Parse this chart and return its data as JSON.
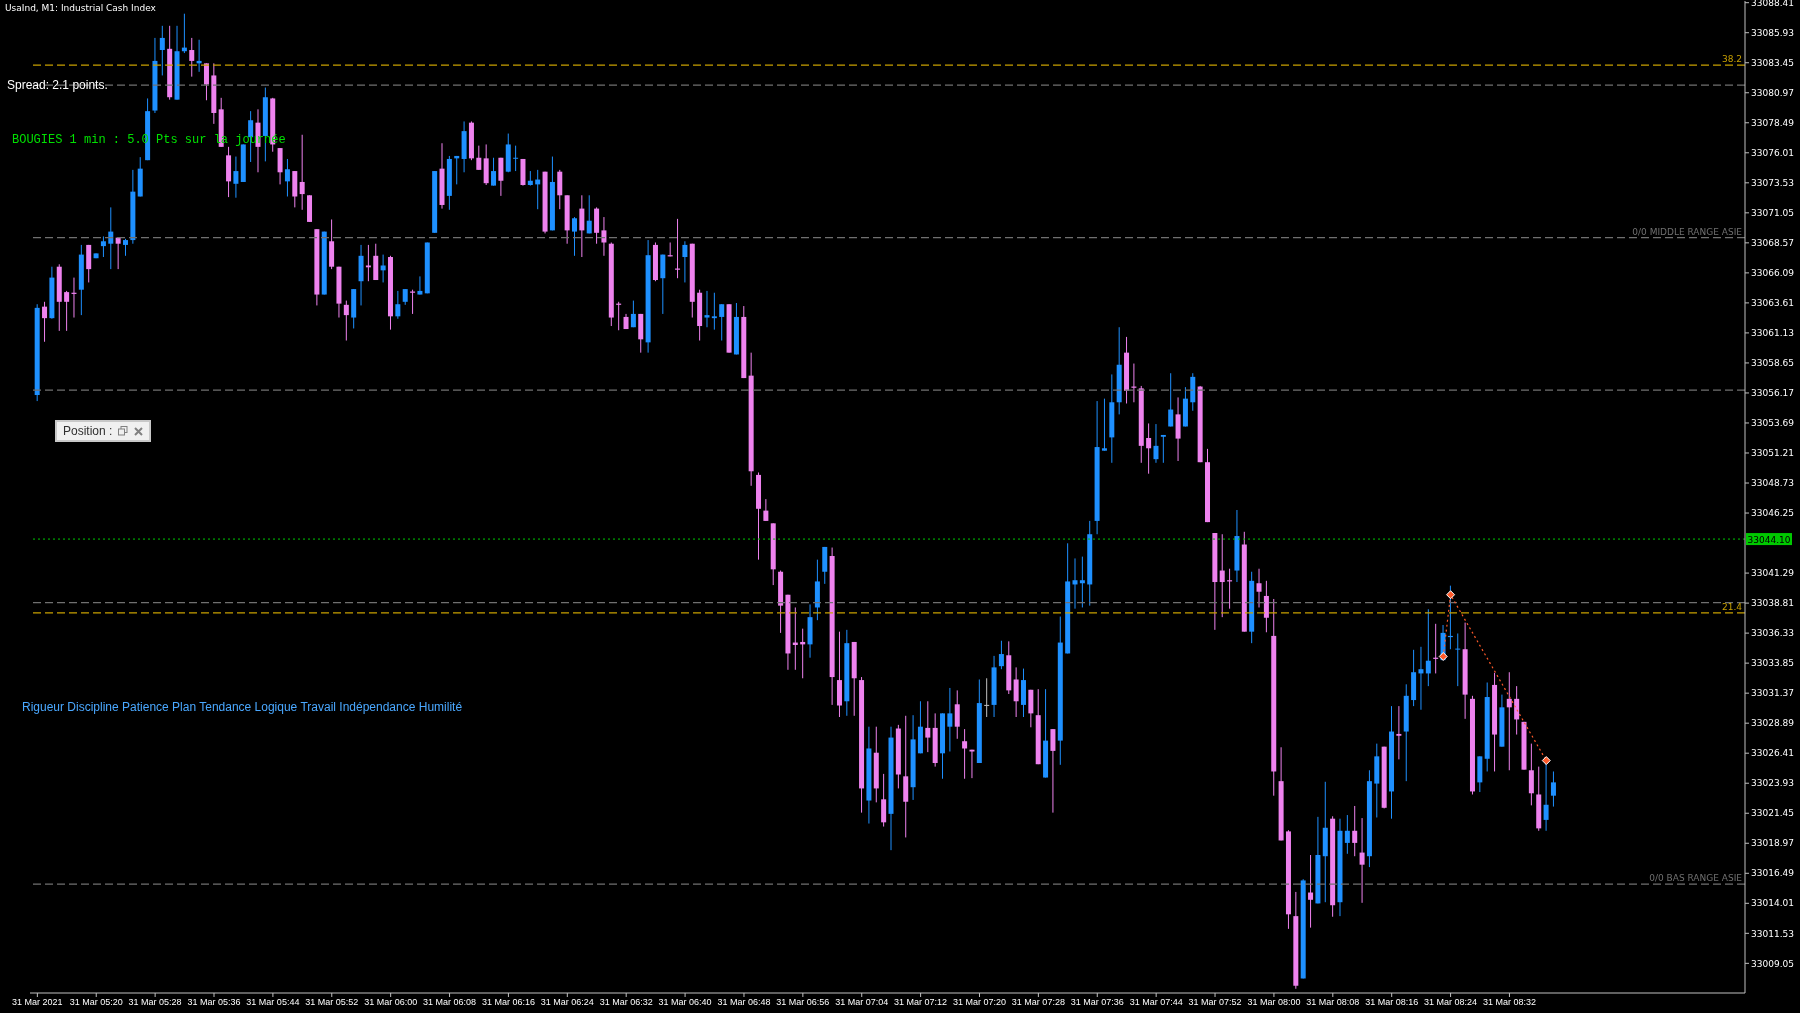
{
  "chart_data": {
    "type": "candlestick",
    "title": "UsaInd, M1: Industrial Cash Index",
    "annotations": [
      "Spread: 2.1 points.",
      "BOUGIES 1 min : 5.0 Pts sur la journée",
      "Position :",
      "Rigueur Discipline Patience Plan Tendance Logique Travail Indépendance Humilité",
      {
        "text": "38.2",
        "y": 33083.25
      },
      {
        "text": "21.4",
        "y": 33038.0
      }
    ],
    "x": [
      "2021-03-31T05:12",
      "2021-03-31T05:13",
      "2021-03-31T05:14",
      "2021-03-31T05:15",
      "2021-03-31T05:16",
      "2021-03-31T05:17",
      "2021-03-31T05:18",
      "2021-03-31T05:19",
      "2021-03-31T05:20",
      "2021-03-31T05:21",
      "2021-03-31T05:22",
      "2021-03-31T05:23",
      "2021-03-31T05:24",
      "2021-03-31T05:25",
      "2021-03-31T05:26",
      "2021-03-31T05:27",
      "2021-03-31T05:28",
      "2021-03-31T05:29",
      "2021-03-31T05:30",
      "2021-03-31T05:31",
      "2021-03-31T05:32",
      "2021-03-31T05:33",
      "2021-03-31T05:34",
      "2021-03-31T05:35",
      "2021-03-31T05:36",
      "2021-03-31T05:37",
      "2021-03-31T05:38",
      "2021-03-31T05:39",
      "2021-03-31T05:40",
      "2021-03-31T05:41",
      "2021-03-31T05:42",
      "2021-03-31T05:43",
      "2021-03-31T05:44",
      "2021-03-31T05:45",
      "2021-03-31T05:46",
      "2021-03-31T05:47",
      "2021-03-31T05:48",
      "2021-03-31T05:49",
      "2021-03-31T05:50",
      "2021-03-31T05:51",
      "2021-03-31T05:52",
      "2021-03-31T05:53",
      "2021-03-31T05:54",
      "2021-03-31T05:55",
      "2021-03-31T05:56",
      "2021-03-31T05:57",
      "2021-03-31T05:58",
      "2021-03-31T05:59",
      "2021-03-31T06:00",
      "2021-03-31T06:01",
      "2021-03-31T06:02",
      "2021-03-31T06:03",
      "2021-03-31T06:04",
      "2021-03-31T06:05",
      "2021-03-31T06:06",
      "2021-03-31T06:07",
      "2021-03-31T06:08",
      "2021-03-31T06:09",
      "2021-03-31T06:10",
      "2021-03-31T06:11",
      "2021-03-31T06:12",
      "2021-03-31T06:13",
      "2021-03-31T06:14",
      "2021-03-31T06:15",
      "2021-03-31T06:16",
      "2021-03-31T06:17",
      "2021-03-31T06:18",
      "2021-03-31T06:19",
      "2021-03-31T06:20",
      "2021-03-31T06:21",
      "2021-03-31T06:22",
      "2021-03-31T06:23",
      "2021-03-31T06:24",
      "2021-03-31T06:25",
      "2021-03-31T06:26",
      "2021-03-31T06:27",
      "2021-03-31T06:28",
      "2021-03-31T06:29",
      "2021-03-31T06:30",
      "2021-03-31T06:31",
      "2021-03-31T06:32",
      "2021-03-31T06:33",
      "2021-03-31T06:34",
      "2021-03-31T06:35",
      "2021-03-31T06:36",
      "2021-03-31T06:37",
      "2021-03-31T06:38",
      "2021-03-31T06:39",
      "2021-03-31T06:40",
      "2021-03-31T06:41",
      "2021-03-31T06:42",
      "2021-03-31T06:43",
      "2021-03-31T06:44",
      "2021-03-31T06:45",
      "2021-03-31T06:46",
      "2021-03-31T06:47",
      "2021-03-31T06:48",
      "2021-03-31T06:49",
      "2021-03-31T06:50",
      "2021-03-31T06:51",
      "2021-03-31T06:52",
      "2021-03-31T06:53",
      "2021-03-31T06:54",
      "2021-03-31T06:55",
      "2021-03-31T06:56",
      "2021-03-31T06:57",
      "2021-03-31T06:58",
      "2021-03-31T06:59",
      "2021-03-31T07:00",
      "2021-03-31T07:01",
      "2021-03-31T07:02",
      "2021-03-31T07:03",
      "2021-03-31T07:04",
      "2021-03-31T07:05",
      "2021-03-31T07:06",
      "2021-03-31T07:07",
      "2021-03-31T07:08",
      "2021-03-31T07:09",
      "2021-03-31T07:10",
      "2021-03-31T07:11",
      "2021-03-31T07:12",
      "2021-03-31T07:13",
      "2021-03-31T07:14",
      "2021-03-31T07:15",
      "2021-03-31T07:16",
      "2021-03-31T07:17",
      "2021-03-31T07:18",
      "2021-03-31T07:19",
      "2021-03-31T07:20",
      "2021-03-31T07:21",
      "2021-03-31T07:22",
      "2021-03-31T07:23",
      "2021-03-31T07:24",
      "2021-03-31T07:25",
      "2021-03-31T07:26",
      "2021-03-31T07:27",
      "2021-03-31T07:28",
      "2021-03-31T07:29",
      "2021-03-31T07:30",
      "2021-03-31T07:31",
      "2021-03-31T07:32",
      "2021-03-31T07:33",
      "2021-03-31T07:34",
      "2021-03-31T07:35",
      "2021-03-31T07:36",
      "2021-03-31T07:37",
      "2021-03-31T07:38",
      "2021-03-31T07:39",
      "2021-03-31T07:40",
      "2021-03-31T07:41",
      "2021-03-31T07:42",
      "2021-03-31T07:43",
      "2021-03-31T07:44",
      "2021-03-31T07:45",
      "2021-03-31T07:46",
      "2021-03-31T07:47",
      "2021-03-31T07:48",
      "2021-03-31T07:49",
      "2021-03-31T07:50",
      "2021-03-31T07:51",
      "2021-03-31T07:52",
      "2021-03-31T07:53",
      "2021-03-31T07:54",
      "2021-03-31T07:55",
      "2021-03-31T07:56",
      "2021-03-31T07:57",
      "2021-03-31T07:58",
      "2021-03-31T07:59",
      "2021-03-31T08:00",
      "2021-03-31T08:01",
      "2021-03-31T08:02",
      "2021-03-31T08:03",
      "2021-03-31T08:04",
      "2021-03-31T08:05",
      "2021-03-31T08:06",
      "2021-03-31T08:07",
      "2021-03-31T08:08",
      "2021-03-31T08:09",
      "2021-03-31T08:10",
      "2021-03-31T08:11",
      "2021-03-31T08:12",
      "2021-03-31T08:13",
      "2021-03-31T08:14",
      "2021-03-31T08:15",
      "2021-03-31T08:16",
      "2021-03-31T08:17",
      "2021-03-31T08:18",
      "2021-03-31T08:19",
      "2021-03-31T08:20",
      "2021-03-31T08:21",
      "2021-03-31T08:22",
      "2021-03-31T08:23",
      "2021-03-31T08:24",
      "2021-03-31T08:25",
      "2021-03-31T08:26",
      "2021-03-31T08:27",
      "2021-03-31T08:28",
      "2021-03-31T08:29",
      "2021-03-31T08:30",
      "2021-03-31T08:31",
      "2021-03-31T08:32",
      "2021-03-31T08:33",
      "2021-03-31T08:34",
      "2021-03-31T08:35",
      "2021-03-31T08:36",
      "2021-03-31T08:37",
      "2021-03-31T08:38"
    ],
    "ohlc": [
      [
        33056,
        33063.5,
        33055.5,
        33063.2
      ],
      [
        33063.3,
        33063.7,
        33060.4,
        33062.35
      ],
      [
        33062.35,
        33066.6,
        33062.3,
        33065.7
      ],
      [
        33066.6,
        33066.8,
        33061.3,
        33063.7
      ],
      [
        33064.5,
        33064.6,
        33061.3,
        33063.7
      ],
      [
        33064.45,
        33065.7,
        33062.4,
        33064.35
      ],
      [
        33064.7,
        33068.4,
        33062.6,
        33067.6
      ],
      [
        33068.4,
        33068.4,
        33065.3,
        33066.4
      ],
      [
        33067.3,
        33067.7,
        33067.3,
        33067.7
      ],
      [
        33068.3,
        33069.1,
        33067.4,
        33068.7
      ],
      [
        33068.5,
        33071.5,
        33066.4,
        33069.5
      ],
      [
        33069,
        33069,
        33066.4,
        33068.5
      ],
      [
        33068.4,
        33068.9,
        33067.5,
        33068.8
      ],
      [
        33068.8,
        33074.6,
        33068.5,
        33072.8
      ],
      [
        33072.4,
        33075.65,
        33072.4,
        33074.7
      ],
      [
        33075.4,
        33080.5,
        33075.4,
        33079.45
      ],
      [
        33079.5,
        33085.5,
        33079.3,
        33083.6
      ],
      [
        33084.5,
        33086.5,
        33082.4,
        33085.5
      ],
      [
        33084.6,
        33086.5,
        33080.4,
        33080.6
      ],
      [
        33080.4,
        33086.5,
        33080.4,
        33084.4
      ],
      [
        33084.4,
        33087.5,
        33084.25,
        33084.7
      ],
      [
        33084.5,
        33085.5,
        33082.3,
        33083.6
      ],
      [
        33083.4,
        33085.35,
        33082.7,
        33083.6
      ],
      [
        33083.4,
        33083.4,
        33080.35,
        33081.65
      ],
      [
        33082.4,
        33083.4,
        33078.4,
        33079.3
      ],
      [
        33079.6,
        33080.55,
        33076.5,
        33076.5
      ],
      [
        33075.8,
        33076.5,
        33072.35,
        33073.65
      ],
      [
        33073.45,
        33075.7,
        33072.3,
        33074.5
      ],
      [
        33073.6,
        33076.7,
        33073.6,
        33076.7
      ],
      [
        33077.3,
        33079.45,
        33075.25,
        33078.7
      ],
      [
        33078.5,
        33079.6,
        33074.4,
        33076.5
      ],
      [
        33077.4,
        33081.4,
        33075.3,
        33080.6
      ],
      [
        33080.5,
        33080.55,
        33076.1,
        33076.7
      ],
      [
        33076.4,
        33076.4,
        33073.4,
        33074.4
      ],
      [
        33073.65,
        33075.5,
        33072.4,
        33074.65
      ],
      [
        33074.5,
        33074.5,
        33071.5,
        33072.4
      ],
      [
        33073.6,
        33077.5,
        33071.3,
        33072.6
      ],
      [
        33072.5,
        33072.5,
        33070.3,
        33070.3
      ],
      [
        33069.7,
        33069.7,
        33063.4,
        33064.3
      ],
      [
        33064.3,
        33069.5,
        33064.3,
        33069.5
      ],
      [
        33068.7,
        33070.5,
        33066.4,
        33066.6
      ],
      [
        33066.6,
        33066.6,
        33062.4,
        33063.55
      ],
      [
        33063.45,
        33063.8,
        33060.5,
        33062.6
      ],
      [
        33062.4,
        33064.75,
        33061.5,
        33064.75
      ],
      [
        33065.4,
        33068.4,
        33063.4,
        33067.5
      ],
      [
        33066.7,
        33068.4,
        33065.4,
        33066.55
      ],
      [
        33067.5,
        33068.5,
        33065.5,
        33065.5
      ],
      [
        33066.3,
        33067.6,
        33065.3,
        33066.7
      ],
      [
        33067.4,
        33067.5,
        33061.4,
        33062.5
      ],
      [
        33062.5,
        33064.6,
        33062.3,
        33063.5
      ],
      [
        33063.7,
        33064.75,
        33063.45,
        33064.75
      ],
      [
        33064.55,
        33064.7,
        33062.7,
        33064.45
      ],
      [
        33064.3,
        33065.8,
        33064.3,
        33064.6
      ],
      [
        33064.4,
        33068.6,
        33064.4,
        33068.6
      ],
      [
        33069.4,
        33074.5,
        33069.4,
        33074.5
      ],
      [
        33074.7,
        33076.8,
        33071.4,
        33071.7
      ],
      [
        33072.45,
        33075.75,
        33071.3,
        33075.5
      ],
      [
        33075.55,
        33075.75,
        33073.4,
        33075.75
      ],
      [
        33075.5,
        33078.6,
        33074.4,
        33077.8
      ],
      [
        33078.5,
        33078.6,
        33075.4,
        33075.55
      ],
      [
        33075.6,
        33076.6,
        33074.6,
        33074.6
      ],
      [
        33075.55,
        33076.7,
        33073.35,
        33073.5
      ],
      [
        33073.3,
        33075.6,
        33073.3,
        33074.5
      ],
      [
        33075.6,
        33075.6,
        33072.45,
        33073.7
      ],
      [
        33074.45,
        33077.6,
        33074.4,
        33076.7
      ],
      [
        33075.55,
        33076.6,
        33074.5,
        33075.6
      ],
      [
        33075.5,
        33075.5,
        33073.3,
        33073.35
      ],
      [
        33073.35,
        33074.5,
        33073.3,
        33073.7
      ],
      [
        33073.4,
        33074.6,
        33071.35,
        33073.8
      ],
      [
        33074.45,
        33074.45,
        33069.35,
        33069.5
      ],
      [
        33069.6,
        33075.7,
        33069.6,
        33073.6
      ],
      [
        33074.45,
        33074.6,
        33071.35,
        33072.5
      ],
      [
        33072.5,
        33072.5,
        33068.5,
        33069.6
      ],
      [
        33069.5,
        33070.7,
        33067.5,
        33070.6
      ],
      [
        33071.4,
        33072.5,
        33067.4,
        33069.6
      ],
      [
        33069.35,
        33072.5,
        33069.35,
        33070.4
      ],
      [
        33071.4,
        33071.5,
        33068.5,
        33069.4
      ],
      [
        33069.6,
        33070.7,
        33067.5,
        33068.6
      ],
      [
        33068.5,
        33068.6,
        33061.7,
        33062.4
      ],
      [
        33063.55,
        33063.7,
        33061.35,
        33063.45
      ],
      [
        33062.45,
        33062.7,
        33061.45,
        33061.45
      ],
      [
        33061.6,
        33063.8,
        33061.6,
        33062.7
      ],
      [
        33062.7,
        33062.7,
        33059.5,
        33060.6
      ],
      [
        33060.35,
        33068.8,
        33059.5,
        33067.55
      ],
      [
        33068.4,
        33068.6,
        33065.4,
        33065.5
      ],
      [
        33065.65,
        33067.6,
        33062.7,
        33067.6
      ],
      [
        33067.55,
        33068.6,
        33067.45,
        33067.45
      ],
      [
        33066.45,
        33070.55,
        33065.65,
        33066.35
      ],
      [
        33067.4,
        33068.7,
        33065.3,
        33068.4
      ],
      [
        33068.5,
        33068.5,
        33062.4,
        33063.7
      ],
      [
        33064.45,
        33064.7,
        33060.5,
        33061.7
      ],
      [
        33062.4,
        33064.6,
        33061.6,
        33062.6
      ],
      [
        33062.35,
        33064.45,
        33061.4,
        33062.5
      ],
      [
        33062.45,
        33063.5,
        33060.5,
        33063.5
      ],
      [
        33063.5,
        33063.5,
        33059.5,
        33059.5
      ],
      [
        33059.35,
        33063.6,
        33059.35,
        33062.45
      ],
      [
        33062.45,
        33063.35,
        33057.4,
        33057.4
      ],
      [
        33057.6,
        33059.5,
        33048.5,
        33049.7
      ],
      [
        33049.4,
        33049.6,
        33042.4,
        33046.6
      ],
      [
        33046.45,
        33047.4,
        33045.6,
        33045.6
      ],
      [
        33045.4,
        33045.4,
        33040.3,
        33041.6
      ],
      [
        33041.4,
        33041.5,
        33036.35,
        33038.6
      ],
      [
        33039.5,
        33039.5,
        33033.3,
        33034.65
      ],
      [
        33035.55,
        33038.45,
        33033.3,
        33035.35
      ],
      [
        33035.6,
        33036.7,
        33032.6,
        33035.4
      ],
      [
        33035.4,
        33038.7,
        33034.3,
        33037.65
      ],
      [
        33038.45,
        33042.4,
        33037.4,
        33040.6
      ],
      [
        33041.4,
        33043.45,
        33040.4,
        33043.45
      ],
      [
        33042.7,
        33043.4,
        33030.4,
        33032.7
      ],
      [
        33032.45,
        33036.45,
        33029.4,
        33030.35
      ],
      [
        33030.7,
        33036.6,
        33029.5,
        33035.5
      ],
      [
        33035.6,
        33035.6,
        33029.5,
        33032.6
      ],
      [
        33032.45,
        33032.7,
        33021.5,
        33023.5
      ],
      [
        33022.5,
        33028.6,
        33020.6,
        33026.8
      ],
      [
        33026.45,
        33028.6,
        33022.35,
        33023.5
      ],
      [
        33022.6,
        33024.7,
        33020.35,
        33020.7
      ],
      [
        33021.4,
        33028.6,
        33018.4,
        33027.7
      ],
      [
        33028.45,
        33028.75,
        33023.5,
        33024.65
      ],
      [
        33024.5,
        33029.5,
        33019.45,
        33022.4
      ],
      [
        33023.6,
        33029.55,
        33022.55,
        33027.55
      ],
      [
        33026.4,
        33030.7,
        33026.4,
        33028.6
      ],
      [
        33028.5,
        33030.7,
        33026.5,
        33027.7
      ],
      [
        33028.5,
        33029.7,
        33025.3,
        33025.6
      ],
      [
        33026.4,
        33029.7,
        33024.3,
        33029.7
      ],
      [
        33028.6,
        33031.8,
        33026.55,
        33029.7
      ],
      [
        33030.45,
        33031.6,
        33027.6,
        33028.6
      ],
      [
        33027.4,
        33028.4,
        33024.3,
        33026.8
      ],
      [
        33026.7,
        33026.7,
        33024.35,
        33026.55
      ],
      [
        33025.6,
        33032.5,
        33025.6,
        33030.55
      ],
      [
        33030.4,
        33032.6,
        33029.4,
        33030.4
      ],
      [
        33030.4,
        33034.45,
        33029.4,
        33033.5
      ],
      [
        33033.6,
        33035.7,
        33033.35,
        33034.6
      ],
      [
        33034.5,
        33035.65,
        33031.3,
        33031.6
      ],
      [
        33032.5,
        33033.5,
        33029.4,
        33030.7
      ],
      [
        33030.4,
        33033.4,
        33029.4,
        33032.45
      ],
      [
        33031.65,
        33031.65,
        33028.55,
        33029.7
      ],
      [
        33029.55,
        33031.7,
        33025.5,
        33025.5
      ],
      [
        33024.4,
        33031.7,
        33024.4,
        33027.45
      ],
      [
        33028.4,
        33028.4,
        33021.5,
        33026.6
      ],
      [
        33027.45,
        33037.7,
        33025.45,
        33035.55
      ],
      [
        33034.65,
        33043.75,
        33034.65,
        33040.6
      ],
      [
        33040.35,
        33042.5,
        33038.35,
        33040.7
      ],
      [
        33040.45,
        33042.65,
        33038.45,
        33040.7
      ],
      [
        33040.35,
        33045.6,
        33038.6,
        33044.5
      ],
      [
        33045.6,
        33055.5,
        33044.5,
        33051.7
      ],
      [
        33051.4,
        33055.7,
        33051.4,
        33051.6
      ],
      [
        33052.5,
        33057.7,
        33050.4,
        33055.4
      ],
      [
        33055.4,
        33061.6,
        33054.4,
        33058.5
      ],
      [
        33059.5,
        33060.8,
        33055.3,
        33056.35
      ],
      [
        33056.7,
        33058.6,
        33055.4,
        33056.6
      ],
      [
        33056.55,
        33056.75,
        33050.4,
        33051.8
      ],
      [
        33052.45,
        33053.65,
        33049.5,
        33051.6
      ],
      [
        33050.7,
        33053.6,
        33050.4,
        33051.8
      ],
      [
        33052.55,
        33052.7,
        33050.4,
        33052.7
      ],
      [
        33053.4,
        33057.8,
        33053.4,
        33054.8
      ],
      [
        33054.4,
        33055.8,
        33050.55,
        33052.4
      ],
      [
        33053.4,
        33056.65,
        33053.4,
        33055.7
      ],
      [
        33055.4,
        33057.8,
        33054.7,
        33057.5
      ],
      [
        33056.7,
        33056.75,
        33050.45,
        33050.45
      ],
      [
        33050.45,
        33051.55,
        33045.5,
        33045.5
      ],
      [
        33044.6,
        33044.6,
        33036.6,
        33040.55
      ],
      [
        33041.5,
        33044.5,
        33037.65,
        33040.55
      ],
      [
        33040.7,
        33041.65,
        33038.35,
        33040.6
      ],
      [
        33041.5,
        33046.5,
        33040.55,
        33044.35
      ],
      [
        33043.65,
        33044.7,
        33036.45,
        33036.45
      ],
      [
        33036.45,
        33041.4,
        33035.5,
        33040.65
      ],
      [
        33040.45,
        33041.65,
        33038.45,
        33039.75
      ],
      [
        33039.4,
        33040.65,
        33036.4,
        33037.6
      ],
      [
        33036.1,
        33039.15,
        33022.9,
        33024.9
      ],
      [
        33024.1,
        33026.9,
        33019.2,
        33019.2
      ],
      [
        33019.95,
        33020.05,
        33011.9,
        33013.1
      ],
      [
        33012.95,
        33014.95,
        33006.95,
        33007.2
      ],
      [
        33007.8,
        33016,
        33007.8,
        33015.9
      ],
      [
        33014.9,
        33018,
        33012,
        33014.3
      ],
      [
        33014,
        33021.15,
        33014,
        33018
      ],
      [
        33017.9,
        33024.05,
        33014.1,
        33020.25
      ],
      [
        33021,
        33021.2,
        33012.9,
        33013.85
      ],
      [
        33014.1,
        33021,
        33012.95,
        33020
      ],
      [
        33019,
        33021.3,
        33018.1,
        33020
      ],
      [
        33020,
        33022.05,
        33017.9,
        33019
      ],
      [
        33018.2,
        33021.05,
        33014.05,
        33017.2
      ],
      [
        33017.9,
        33025,
        33017,
        33024.1
      ],
      [
        33023.9,
        33027.2,
        33021.1,
        33026.15
      ],
      [
        33026.95,
        33026.95,
        33021.85,
        33021.9
      ],
      [
        33023.25,
        33030.3,
        33021,
        33028.2
      ],
      [
        33028,
        33030.3,
        33025.9,
        33027.85
      ],
      [
        33028.2,
        33032.1,
        33024.1,
        33031.15
      ],
      [
        33030.8,
        33034.95,
        33030.3,
        33033.1
      ],
      [
        33033,
        33035.2,
        33030,
        33033.35
      ],
      [
        33033,
        33038.3,
        33031.95,
        33034.05
      ],
      [
        33034.3,
        33037.1,
        33033,
        33034.2
      ],
      [
        33034.1,
        33037,
        33034.1,
        33036.35
      ],
      [
        33036,
        33040.25,
        33035,
        33036.1
      ],
      [
        33035,
        33036.3,
        33031.95,
        33035.05
      ],
      [
        33035,
        33037.2,
        33029.25,
        33031.25
      ],
      [
        33030.9,
        33031.15,
        33023,
        33023.25
      ],
      [
        33024,
        33026.15,
        33023.2,
        33026.15
      ],
      [
        33025.95,
        33032.25,
        33024.9,
        33031.05
      ],
      [
        33032.05,
        33033.05,
        33024.9,
        33027.95
      ],
      [
        33026.95,
        33031.25,
        33026.95,
        33030.2
      ],
      [
        33030.9,
        33033.1,
        33025,
        33030.2
      ],
      [
        33030.9,
        33031.95,
        33027.95,
        33029.2
      ],
      [
        33029,
        33029,
        33025.05,
        33025.05
      ],
      [
        33025,
        33027.2,
        33022.1,
        33023.1
      ],
      [
        33023,
        33025.3,
        33020,
        33020.2
      ],
      [
        33020.9,
        33025.55,
        33020,
        33022.15
      ],
      [
        33022.9,
        33024.9,
        33022,
        33024
      ]
    ],
    "colors": [
      "#1e90ff",
      "#ee82ee",
      "#1e90ff",
      "#ee82ee",
      "#ee82ee",
      "#ee82ee",
      "#1e90ff",
      "#ee82ee",
      "#1e90ff",
      "#1e90ff",
      "#1e90ff",
      "#ee82ee",
      "#1e90ff",
      "#1e90ff",
      "#1e90ff",
      "#1e90ff",
      "#1e90ff",
      "#1e90ff",
      "#ee82ee",
      "#1e90ff",
      "#1e90ff",
      "#ee82ee",
      "#1e90ff",
      "#ee82ee",
      "#ee82ee",
      "#ee82ee",
      "#ee82ee",
      "#1e90ff",
      "#1e90ff",
      "#1e90ff",
      "#ee82ee",
      "#1e90ff",
      "#ee82ee",
      "#ee82ee",
      "#1e90ff",
      "#ee82ee",
      "#ee82ee",
      "#ee82ee",
      "#ee82ee",
      "#1e90ff",
      "#ee82ee",
      "#ee82ee",
      "#ee82ee",
      "#1e90ff",
      "#1e90ff",
      "#ee82ee",
      "#ee82ee",
      "#1e90ff",
      "#ee82ee",
      "#1e90ff",
      "#1e90ff",
      "#ee82ee",
      "#1e90ff",
      "#1e90ff",
      "#1e90ff",
      "#ee82ee",
      "#1e90ff",
      "#1e90ff",
      "#1e90ff",
      "#ee82ee",
      "#ee82ee",
      "#ee82ee",
      "#1e90ff",
      "#ee82ee",
      "#1e90ff",
      "#1e90ff",
      "#ee82ee",
      "#1e90ff",
      "#1e90ff",
      "#ee82ee",
      "#1e90ff",
      "#ee82ee",
      "#ee82ee",
      "#1e90ff",
      "#ee82ee",
      "#1e90ff",
      "#ee82ee",
      "#ee82ee",
      "#ee82ee",
      "#ee82ee",
      "#ee82ee",
      "#1e90ff",
      "#ee82ee",
      "#1e90ff",
      "#ee82ee",
      "#1e90ff",
      "#ee82ee",
      "#ee82ee",
      "#1e90ff",
      "#ee82ee",
      "#ee82ee",
      "#1e90ff",
      "#1e90ff",
      "#1e90ff",
      "#ee82ee",
      "#1e90ff",
      "#ee82ee",
      "#ee82ee",
      "#ee82ee",
      "#ee82ee",
      "#ee82ee",
      "#ee82ee",
      "#ee82ee",
      "#ee82ee",
      "#ee82ee",
      "#1e90ff",
      "#1e90ff",
      "#1e90ff",
      "#ee82ee",
      "#ee82ee",
      "#1e90ff",
      "#ee82ee",
      "#ee82ee",
      "#1e90ff",
      "#ee82ee",
      "#ee82ee",
      "#1e90ff",
      "#ee82ee",
      "#ee82ee",
      "#1e90ff",
      "#1e90ff",
      "#ee82ee",
      "#ee82ee",
      "#1e90ff",
      "#1e90ff",
      "#ee82ee",
      "#ee82ee",
      "#ee82ee",
      "#1e90ff",
      "#c0c0c0",
      "#1e90ff",
      "#1e90ff",
      "#ee82ee",
      "#ee82ee",
      "#1e90ff",
      "#ee82ee",
      "#ee82ee",
      "#1e90ff",
      "#ee82ee",
      "#1e90ff",
      "#1e90ff",
      "#1e90ff",
      "#1e90ff",
      "#1e90ff",
      "#1e90ff",
      "#1e90ff",
      "#1e90ff",
      "#1e90ff",
      "#ee82ee",
      "#ee82ee",
      "#ee82ee",
      "#ee82ee",
      "#1e90ff",
      "#1e90ff",
      "#1e90ff",
      "#ee82ee",
      "#1e90ff",
      "#1e90ff",
      "#ee82ee",
      "#ee82ee",
      "#ee82ee",
      "#ee82ee",
      "#ee82ee",
      "#1e90ff",
      "#ee82ee",
      "#1e90ff",
      "#ee82ee",
      "#ee82ee",
      "#ee82ee",
      "#ee82ee",
      "#ee82ee",
      "#ee82ee",
      "#1e90ff",
      "#ee82ee",
      "#1e90ff",
      "#1e90ff",
      "#ee82ee",
      "#1e90ff",
      "#1e90ff",
      "#ee82ee",
      "#ee82ee",
      "#1e90ff",
      "#1e90ff",
      "#ee82ee",
      "#1e90ff",
      "#ee82ee",
      "#1e90ff",
      "#1e90ff",
      "#1e90ff",
      "#1e90ff",
      "#ee82ee",
      "#1e90ff",
      "#1e90ff",
      "#1e90ff",
      "#ee82ee",
      "#ee82ee",
      "#1e90ff",
      "#1e90ff",
      "#ee82ee",
      "#1e90ff",
      "#ee82ee",
      "#ee82ee",
      "#ee82ee",
      "#ee82ee",
      "#ee82ee",
      "#1e90ff",
      "#1e90ff"
    ],
    "series": [
      {
        "type": "line",
        "x": [
          "2021-03-31T08:23",
          "2021-03-31T08:24",
          "2021-03-31T08:37"
        ],
        "values": [
          33034.4,
          33039.5,
          33025.8
        ],
        "color": "#ff5a2a",
        "line_style": "dotted",
        "marker": "diamond"
      }
    ],
    "xlim": [
      "2021-03-31T05:11",
      "2021-03-31T09:04"
    ],
    "xticks": [
      {
        "value": "2021-03-31T05:12",
        "label": "31 Mar 2021"
      },
      {
        "value": "2021-03-31T05:20",
        "label": "31 Mar 05:20"
      },
      {
        "value": "2021-03-31T05:28",
        "label": "31 Mar 05:28"
      },
      {
        "value": "2021-03-31T05:36",
        "label": "31 Mar 05:36"
      },
      {
        "value": "2021-03-31T05:44",
        "label": "31 Mar 05:44"
      },
      {
        "value": "2021-03-31T05:52",
        "label": "31 Mar 05:52"
      },
      {
        "value": "2021-03-31T06:00",
        "label": "31 Mar 06:00"
      },
      {
        "value": "2021-03-31T06:08",
        "label": "31 Mar 06:08"
      },
      {
        "value": "2021-03-31T06:16",
        "label": "31 Mar 06:16"
      },
      {
        "value": "2021-03-31T06:24",
        "label": "31 Mar 06:24"
      },
      {
        "value": "2021-03-31T06:32",
        "label": "31 Mar 06:32"
      },
      {
        "value": "2021-03-31T06:40",
        "label": "31 Mar 06:40"
      },
      {
        "value": "2021-03-31T06:48",
        "label": "31 Mar 06:48"
      },
      {
        "value": "2021-03-31T06:56",
        "label": "31 Mar 06:56"
      },
      {
        "value": "2021-03-31T07:04",
        "label": "31 Mar 07:04"
      },
      {
        "value": "2021-03-31T07:12",
        "label": "31 Mar 07:12"
      },
      {
        "value": "2021-03-31T07:20",
        "label": "31 Mar 07:20"
      },
      {
        "value": "2021-03-31T07:28",
        "label": "31 Mar 07:28"
      },
      {
        "value": "2021-03-31T07:36",
        "label": "31 Mar 07:36"
      },
      {
        "value": "2021-03-31T07:44",
        "label": "31 Mar 07:44"
      },
      {
        "value": "2021-03-31T07:52",
        "label": "31 Mar 07:52"
      },
      {
        "value": "2021-03-31T08:00",
        "label": "31 Mar 08:00"
      },
      {
        "value": "2021-03-31T08:08",
        "label": "31 Mar 08:08"
      },
      {
        "value": "2021-03-31T08:16",
        "label": "31 Mar 08:16"
      },
      {
        "value": "2021-03-31T08:24",
        "label": "31 Mar 08:24"
      },
      {
        "value": "2021-03-31T08:32",
        "label": "31 Mar 08:32"
      }
    ],
    "ylim": [
      33006.6,
      33088.55
    ],
    "yticks": [
      33088.41,
      33085.93,
      33083.45,
      33080.97,
      33078.49,
      33076.01,
      33073.53,
      33071.05,
      33068.57,
      33066.09,
      33063.61,
      33061.13,
      33058.65,
      33056.17,
      33053.69,
      33051.21,
      33048.73,
      33046.25,
      33041.29,
      33038.81,
      33036.33,
      33033.85,
      33031.37,
      33028.89,
      33026.41,
      33023.93,
      33021.45,
      33018.97,
      33016.49,
      33014.01,
      33011.53,
      33009.05
    ],
    "ref_lines": [
      {
        "axis": "y",
        "value": 33083.25,
        "color": "#c8a000",
        "line_style": "dashed"
      },
      {
        "axis": "y",
        "value": 33038.0,
        "color": "#c8a000",
        "line_style": "dashed"
      },
      {
        "axis": "y",
        "value": 33044.1,
        "label": "33044.10",
        "color": "#00c800",
        "line_style": "dotted"
      },
      {
        "axis": "y",
        "value": 33081.6,
        "color": "#707070",
        "line_style": "dashed"
      },
      {
        "axis": "y",
        "value": 33069.0,
        "label": "0/0 MIDDLE RANGE ASIE",
        "color": "#707070",
        "line_style": "dashed"
      },
      {
        "axis": "y",
        "value": 33056.4,
        "color": "#707070",
        "line_style": "dashed"
      },
      {
        "axis": "y",
        "value": 33038.85,
        "color": "#707070",
        "line_style": "dashed"
      },
      {
        "axis": "y",
        "value": 33015.6,
        "label": "0/0 BAS RANGE ASIE",
        "color": "#707070",
        "line_style": "dashed"
      }
    ]
  }
}
